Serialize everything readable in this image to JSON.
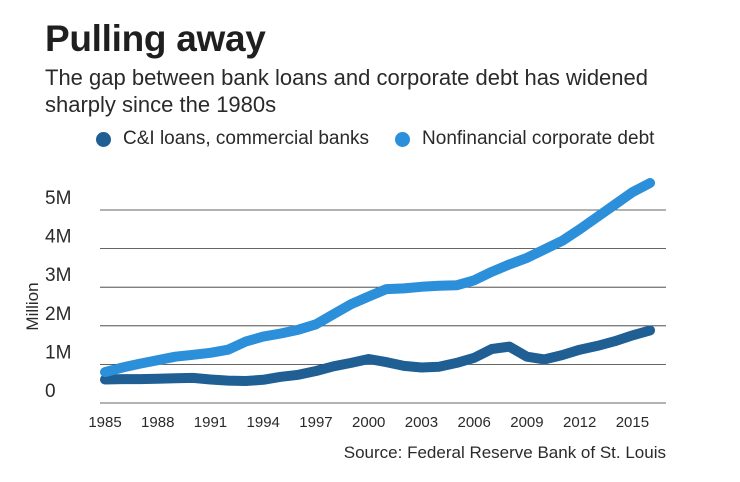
{
  "title": "Pulling away",
  "subtitle": "The gap between bank loans and corporate debt has widened sharply since the 1980s",
  "source": "Source: Federal Reserve Bank of St. Louis",
  "colors": {
    "ci_loans": "#1f5f94",
    "corp_debt": "#2b8fd9",
    "grid": "#333333"
  },
  "chart_data": {
    "type": "line",
    "ylabel": "Million",
    "xlabel": "",
    "xlim": [
      1985,
      2016
    ],
    "ylim": [
      0,
      5700000
    ],
    "x_ticks": [
      1985,
      1988,
      1991,
      1994,
      1997,
      2000,
      2003,
      2006,
      2009,
      2012,
      2015
    ],
    "y_ticks": [
      {
        "value": 0,
        "label": "0"
      },
      {
        "value": 1000000,
        "label": "1M"
      },
      {
        "value": 2000000,
        "label": "2M"
      },
      {
        "value": 3000000,
        "label": "3M"
      },
      {
        "value": 4000000,
        "label": "4M"
      },
      {
        "value": 5000000,
        "label": "5M"
      }
    ],
    "grid": true,
    "legend_position": "top",
    "series": [
      {
        "name": "C&I loans, commercial banks",
        "color": "#1f5f94",
        "points": [
          [
            1985,
            610000
          ],
          [
            1986,
            620000
          ],
          [
            1987,
            620000
          ],
          [
            1988,
            630000
          ],
          [
            1989,
            640000
          ],
          [
            1990,
            650000
          ],
          [
            1991,
            610000
          ],
          [
            1992,
            580000
          ],
          [
            1993,
            570000
          ],
          [
            1994,
            600000
          ],
          [
            1995,
            680000
          ],
          [
            1996,
            730000
          ],
          [
            1997,
            830000
          ],
          [
            1998,
            950000
          ],
          [
            1999,
            1040000
          ],
          [
            2000,
            1140000
          ],
          [
            2001,
            1060000
          ],
          [
            2002,
            960000
          ],
          [
            2003,
            920000
          ],
          [
            2004,
            940000
          ],
          [
            2005,
            1040000
          ],
          [
            2006,
            1170000
          ],
          [
            2007,
            1400000
          ],
          [
            2008,
            1460000
          ],
          [
            2009,
            1200000
          ],
          [
            2010,
            1130000
          ],
          [
            2011,
            1240000
          ],
          [
            2012,
            1380000
          ],
          [
            2013,
            1480000
          ],
          [
            2014,
            1600000
          ],
          [
            2015,
            1750000
          ],
          [
            2016,
            1880000
          ]
        ]
      },
      {
        "name": "Nonfinancial corporate debt",
        "color": "#2b8fd9",
        "points": [
          [
            1985,
            800000
          ],
          [
            1986,
            920000
          ],
          [
            1987,
            1020000
          ],
          [
            1988,
            1110000
          ],
          [
            1989,
            1200000
          ],
          [
            1990,
            1250000
          ],
          [
            1991,
            1300000
          ],
          [
            1992,
            1380000
          ],
          [
            1993,
            1590000
          ],
          [
            1994,
            1720000
          ],
          [
            1995,
            1800000
          ],
          [
            1996,
            1900000
          ],
          [
            1997,
            2040000
          ],
          [
            1998,
            2300000
          ],
          [
            1999,
            2560000
          ],
          [
            2000,
            2760000
          ],
          [
            2001,
            2950000
          ],
          [
            2002,
            2970000
          ],
          [
            2003,
            3010000
          ],
          [
            2004,
            3040000
          ],
          [
            2005,
            3050000
          ],
          [
            2006,
            3180000
          ],
          [
            2007,
            3400000
          ],
          [
            2008,
            3590000
          ],
          [
            2009,
            3760000
          ],
          [
            2010,
            3980000
          ],
          [
            2011,
            4200000
          ],
          [
            2012,
            4500000
          ],
          [
            2013,
            4820000
          ],
          [
            2014,
            5140000
          ],
          [
            2015,
            5460000
          ],
          [
            2016,
            5700000
          ]
        ]
      }
    ]
  }
}
